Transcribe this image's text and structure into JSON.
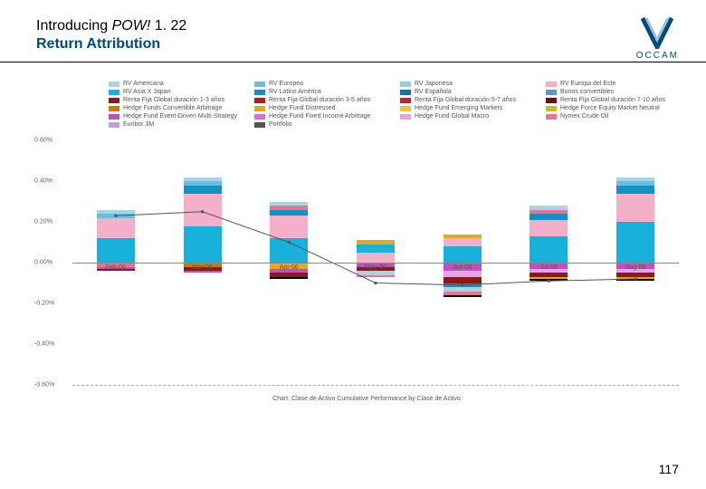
{
  "header": {
    "title_prefix": "Introducing ",
    "title_pow": "POW!",
    "title_version": " 1. 22",
    "subtitle": "Return Attribution",
    "logo_text": "OCCAM"
  },
  "page_number": "117",
  "chart": {
    "type": "stacked-bar-with-line",
    "caption": "Chart: Clase de Activo Cumulative Performance by Clase de Activo",
    "ylim": [
      -0.6,
      0.6
    ],
    "yticks": [
      "0.60%",
      "0.40%",
      "0.20%",
      "0.00%",
      "-0.20%",
      "-0.40%",
      "-0.60%"
    ],
    "ytick_values": [
      0.6,
      0.4,
      0.2,
      0.0,
      -0.2,
      -0.4,
      -0.6
    ],
    "zero_y": 0.0,
    "dash_y": -0.6,
    "categories": [
      "Feb-06",
      "Mar-06",
      "Apr-06",
      "May-06",
      "Jun-06",
      "Jul-06",
      "Aug-06"
    ],
    "series": [
      {
        "label": "RV Americana",
        "color": "#a6d4e8"
      },
      {
        "label": "RV Europea",
        "color": "#6bbde0"
      },
      {
        "label": "RV Japonesa",
        "color": "#8cd1e6"
      },
      {
        "label": "RV Europa del Este",
        "color": "#f4b0c8"
      },
      {
        "label": "RV Asia X Japan",
        "color": "#18b1dc"
      },
      {
        "label": "RV Latino América",
        "color": "#1292c4"
      },
      {
        "label": "RV Española",
        "color": "#0f73a6"
      },
      {
        "label": "Bonos convertibles",
        "color": "#5a99c7"
      },
      {
        "label": "Renta Fija Global duración 1-3 años",
        "color": "#8a1a1a"
      },
      {
        "label": "Renta Fija Global duración 3-5 años",
        "color": "#a82020"
      },
      {
        "label": "Renta Fija Global duración 5-7 años",
        "color": "#c02828"
      },
      {
        "label": "Renta Fija Global duración 7-10 años",
        "color": "#6a0f0f"
      },
      {
        "label": "Hedge Funds Convertible Arbitrage",
        "color": "#c87d00"
      },
      {
        "label": "Hedge Fund Distressed",
        "color": "#e6a820"
      },
      {
        "label": "Hedge Fund Emerging Markets",
        "color": "#f0c040"
      },
      {
        "label": "Hedge Force Equity Market Neutral",
        "color": "#c0c020"
      },
      {
        "label": "Hedge Fund Event-Driven Multi-Strategy",
        "color": "#c050c0"
      },
      {
        "label": "Hedge Fund Fixed Income Arbitrage",
        "color": "#d870d8"
      },
      {
        "label": "Hedge Fund Global Macro",
        "color": "#e8a0e8"
      },
      {
        "label": "Nymex Crude Oil",
        "color": "#f07090"
      },
      {
        "label": "Euribor 3M",
        "color": "#c0a0e0"
      },
      {
        "label": "Portfolio",
        "color": "#555555"
      }
    ],
    "bars": [
      {
        "cat": "Feb-06",
        "pos": [
          {
            "color": "#18b1dc",
            "v": 0.12
          },
          {
            "color": "#f4b0c8",
            "v": 0.1
          },
          {
            "color": "#6bbde0",
            "v": 0.02
          },
          {
            "color": "#a6d4e8",
            "v": 0.02
          }
        ],
        "neg": [
          {
            "color": "#f07090",
            "v": 0.02
          },
          {
            "color": "#c050c0",
            "v": 0.01
          },
          {
            "color": "#8a1a1a",
            "v": 0.01
          }
        ]
      },
      {
        "cat": "Mar-06",
        "pos": [
          {
            "color": "#18b1dc",
            "v": 0.18
          },
          {
            "color": "#f4b0c8",
            "v": 0.16
          },
          {
            "color": "#1292c4",
            "v": 0.04
          },
          {
            "color": "#6bbde0",
            "v": 0.02
          },
          {
            "color": "#a6d4e8",
            "v": 0.02
          }
        ],
        "neg": [
          {
            "color": "#c87d00",
            "v": 0.02
          },
          {
            "color": "#8a1a1a",
            "v": 0.02
          },
          {
            "color": "#c050c0",
            "v": 0.01
          }
        ]
      },
      {
        "cat": "Apr-06",
        "pos": [
          {
            "color": "#18b1dc",
            "v": 0.12
          },
          {
            "color": "#f4b0c8",
            "v": 0.11
          },
          {
            "color": "#1292c4",
            "v": 0.03
          },
          {
            "color": "#f07090",
            "v": 0.02
          },
          {
            "color": "#a6d4e8",
            "v": 0.02
          }
        ],
        "neg": [
          {
            "color": "#e6a820",
            "v": 0.03
          },
          {
            "color": "#c050c0",
            "v": 0.02
          },
          {
            "color": "#8a1a1a",
            "v": 0.02
          },
          {
            "color": "#000000",
            "v": 0.01
          }
        ]
      },
      {
        "cat": "May-06",
        "pos": [
          {
            "color": "#f4b0c8",
            "v": 0.05
          },
          {
            "color": "#18b1dc",
            "v": 0.04
          },
          {
            "color": "#e6a820",
            "v": 0.02
          }
        ],
        "neg": [
          {
            "color": "#c050c0",
            "v": 0.02
          },
          {
            "color": "#8a1a1a",
            "v": 0.02
          },
          {
            "color": "#a6d4e8",
            "v": 0.02
          },
          {
            "color": "#f07090",
            "v": 0.01
          }
        ]
      },
      {
        "cat": "Jun-06",
        "pos": [
          {
            "color": "#18b1dc",
            "v": 0.08
          },
          {
            "color": "#f4b0c8",
            "v": 0.04
          },
          {
            "color": "#e6a820",
            "v": 0.02
          }
        ],
        "neg": [
          {
            "color": "#c050c0",
            "v": 0.04
          },
          {
            "color": "#e8a0e8",
            "v": 0.03
          },
          {
            "color": "#8a1a1a",
            "v": 0.03
          },
          {
            "color": "#1292c4",
            "v": 0.02
          },
          {
            "color": "#a6d4e8",
            "v": 0.02
          },
          {
            "color": "#f07090",
            "v": 0.02
          },
          {
            "color": "#000000",
            "v": 0.01
          }
        ]
      },
      {
        "cat": "Jul-06",
        "pos": [
          {
            "color": "#18b1dc",
            "v": 0.13
          },
          {
            "color": "#f4b0c8",
            "v": 0.08
          },
          {
            "color": "#1292c4",
            "v": 0.03
          },
          {
            "color": "#f07090",
            "v": 0.02
          },
          {
            "color": "#a6d4e8",
            "v": 0.02
          }
        ],
        "neg": [
          {
            "color": "#c050c0",
            "v": 0.03
          },
          {
            "color": "#e8a0e8",
            "v": 0.02
          },
          {
            "color": "#8a1a1a",
            "v": 0.02
          },
          {
            "color": "#e6a820",
            "v": 0.01
          },
          {
            "color": "#000000",
            "v": 0.01
          }
        ]
      },
      {
        "cat": "Aug-06",
        "pos": [
          {
            "color": "#18b1dc",
            "v": 0.2
          },
          {
            "color": "#f4b0c8",
            "v": 0.14
          },
          {
            "color": "#1292c4",
            "v": 0.04
          },
          {
            "color": "#6bbde0",
            "v": 0.02
          },
          {
            "color": "#a6d4e8",
            "v": 0.02
          }
        ],
        "neg": [
          {
            "color": "#c050c0",
            "v": 0.03
          },
          {
            "color": "#e8a0e8",
            "v": 0.02
          },
          {
            "color": "#8a1a1a",
            "v": 0.02
          },
          {
            "color": "#e6a820",
            "v": 0.01
          },
          {
            "color": "#000000",
            "v": 0.01
          }
        ]
      }
    ],
    "line": {
      "color": "#555555",
      "points": [
        0.23,
        0.25,
        0.1,
        -0.1,
        -0.11,
        -0.09,
        -0.08
      ]
    }
  }
}
